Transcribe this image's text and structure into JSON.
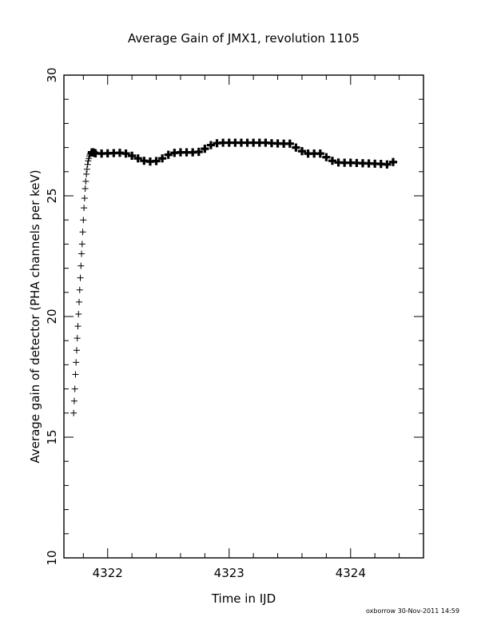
{
  "chart_data": {
    "type": "scatter",
    "title": "Average Gain of JMX1, revolution 1105",
    "xlabel": "Time in IJD",
    "ylabel": "Average gain of detector (PHA channels per keV)",
    "xlim": [
      4321.64,
      4324.6
    ],
    "ylim": [
      10,
      30
    ],
    "x_ticks": [
      4322,
      4323,
      4324
    ],
    "y_ticks": [
      10,
      15,
      20,
      25,
      30
    ],
    "x_tick_labels": [
      "4322",
      "4323",
      "4324"
    ],
    "y_tick_labels": [
      "10",
      "15",
      "20",
      "25",
      "30"
    ],
    "grid": false,
    "marker": "plus",
    "series": [
      {
        "x": [
          4321.72,
          4321.725,
          4321.73,
          4321.735,
          4321.74,
          4321.745,
          4321.75,
          4321.755,
          4321.76,
          4321.765,
          4321.77,
          4321.775,
          4321.78,
          4321.785,
          4321.79,
          4321.795,
          4321.8,
          4321.805,
          4321.81,
          4321.815,
          4321.82,
          4321.825,
          4321.83,
          4321.835,
          4321.84,
          4321.845,
          4321.85,
          4321.855,
          4321.86,
          4321.87,
          4321.88,
          4321.89,
          4321.9,
          4321.95,
          4322.0,
          4322.05,
          4322.1,
          4322.15,
          4322.2,
          4322.25,
          4322.3,
          4322.35,
          4322.4,
          4322.45,
          4322.5,
          4322.55,
          4322.6,
          4322.65,
          4322.7,
          4322.75,
          4322.8,
          4322.85,
          4322.9,
          4322.95,
          4323.0,
          4323.05,
          4323.1,
          4323.15,
          4323.2,
          4323.25,
          4323.3,
          4323.35,
          4323.4,
          4323.45,
          4323.5,
          4323.55,
          4323.6,
          4323.65,
          4323.7,
          4323.75,
          4323.8,
          4323.85,
          4323.9,
          4323.95,
          4324.0,
          4324.05,
          4324.1,
          4324.15,
          4324.2,
          4324.25,
          4324.3,
          4324.35
        ],
        "y": [
          16.0,
          16.5,
          17.0,
          17.6,
          18.1,
          18.6,
          19.1,
          19.6,
          20.1,
          20.6,
          21.1,
          21.6,
          22.1,
          22.6,
          23.0,
          23.5,
          24.0,
          24.5,
          24.9,
          25.3,
          25.6,
          25.9,
          26.1,
          26.3,
          26.45,
          26.55,
          26.65,
          26.72,
          26.76,
          26.8,
          26.8,
          26.78,
          26.76,
          26.75,
          26.76,
          26.77,
          26.78,
          26.75,
          26.66,
          26.55,
          26.45,
          26.42,
          26.44,
          26.55,
          26.7,
          26.78,
          26.8,
          26.8,
          26.8,
          26.82,
          26.95,
          27.1,
          27.18,
          27.2,
          27.2,
          27.2,
          27.2,
          27.2,
          27.2,
          27.2,
          27.2,
          27.18,
          27.17,
          27.16,
          27.16,
          27.0,
          26.85,
          26.75,
          26.75,
          26.75,
          26.6,
          26.45,
          26.38,
          26.37,
          26.37,
          26.36,
          26.35,
          26.34,
          26.33,
          26.32,
          26.3,
          26.4
        ]
      }
    ]
  },
  "footer": {
    "stamp": "oxborrow 30-Nov-2011 14:59"
  }
}
